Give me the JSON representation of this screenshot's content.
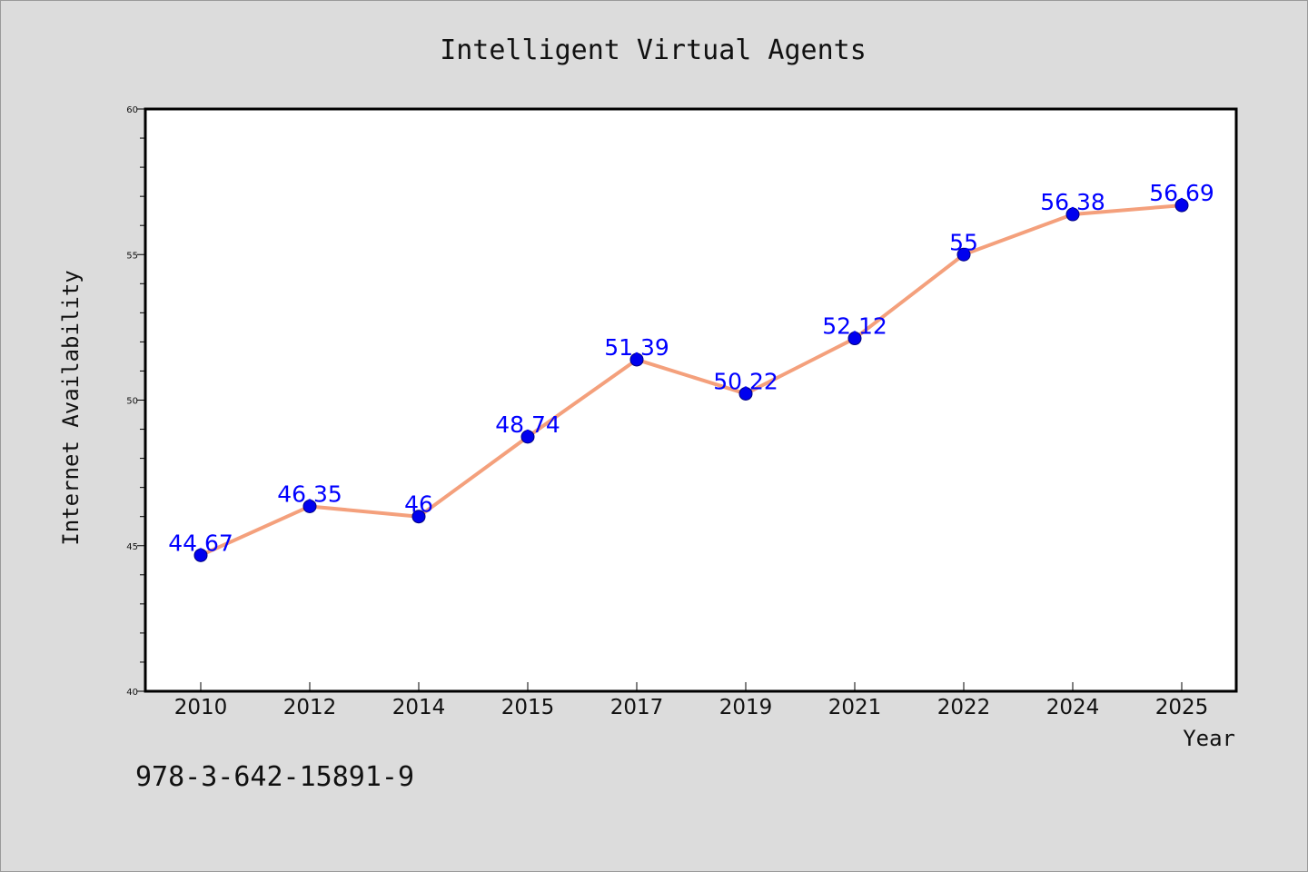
{
  "chart_data": {
    "type": "line",
    "title": "Intelligent Virtual Agents",
    "xlabel": "Year",
    "ylabel": "Internet Availability",
    "categories": [
      "2010",
      "2012",
      "2014",
      "2015",
      "2017",
      "2019",
      "2021",
      "2022",
      "2024",
      "2025"
    ],
    "series": [
      {
        "values": [
          44.67,
          46.35,
          46,
          48.74,
          51.39,
          50.22,
          52.12,
          55,
          56.38,
          56.69
        ],
        "data_labels": [
          "44.67",
          "46.35",
          "46",
          "48.74",
          "51.39",
          "50.22",
          "52.12",
          "55",
          "56.38",
          "56.69"
        ]
      }
    ],
    "ylim": [
      40,
      60
    ],
    "yticks": [
      40,
      45,
      50,
      55,
      60
    ],
    "grid": false,
    "line_color": "#f4a07c",
    "marker_color": "#0000ee",
    "label_color": "#0000ff"
  },
  "footnote": "978-3-642-15891-9"
}
